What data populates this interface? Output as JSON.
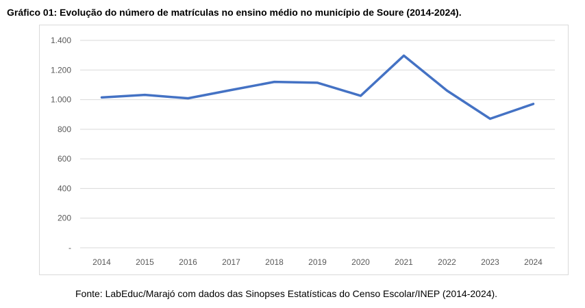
{
  "chart_data": {
    "type": "line",
    "title": "Gráfico 01: Evolução do número de matrículas no ensino médio no município de Soure (2014-2024).",
    "source": "Fonte: LabEduc/Marajó com dados das Sinopses Estatísticas do Censo Escolar/INEP (2014-2024).",
    "categories": [
      "2014",
      "2015",
      "2016",
      "2017",
      "2018",
      "2019",
      "2020",
      "2021",
      "2022",
      "2023",
      "2024"
    ],
    "series": [
      {
        "values": [
          1015,
          1032,
          1009,
          1065,
          1120,
          1114,
          1026,
          1297,
          1061,
          871,
          971
        ],
        "color": "#4472C4"
      }
    ],
    "ylim": [
      0,
      1400
    ],
    "yticks": [
      0,
      200,
      400,
      600,
      800,
      1000,
      1200,
      1400
    ],
    "ytick_labels": [
      "-",
      "200",
      "400",
      "600",
      "800",
      "1.000",
      "1.200",
      "1.400"
    ],
    "grid": true,
    "legend": "none"
  }
}
